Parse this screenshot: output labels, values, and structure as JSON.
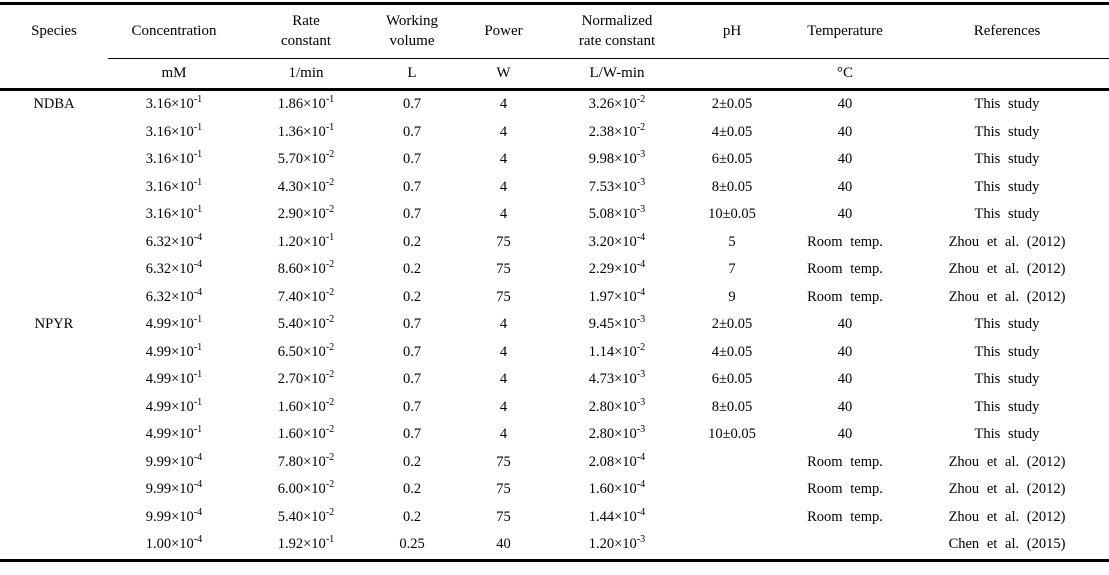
{
  "colors": {
    "background": "#ffffff",
    "text": "#000000",
    "rule": "#000000"
  },
  "table": {
    "columns": [
      {
        "key": "species",
        "label": "Species",
        "unit": ""
      },
      {
        "key": "concentration",
        "label": "Concentration",
        "unit": "mM"
      },
      {
        "key": "rate_constant",
        "label": "Rate\nconstant",
        "unit": "1/min"
      },
      {
        "key": "working_volume",
        "label": "Working\nvolume",
        "unit": "L"
      },
      {
        "key": "power",
        "label": "Power",
        "unit": "W"
      },
      {
        "key": "normalized_rate_constant",
        "label": "Normalized\nrate constant",
        "unit": "L/W-min"
      },
      {
        "key": "ph",
        "label": "pH",
        "unit": ""
      },
      {
        "key": "temperature",
        "label": "Temperature",
        "unit": "°C"
      },
      {
        "key": "references",
        "label": "References",
        "unit": ""
      }
    ],
    "rows": [
      [
        "NDBA",
        "3.16×10^-1",
        "1.86×10^-1",
        "0.7",
        "4",
        "3.26×10^-2",
        "2±0.05",
        "40",
        "This study"
      ],
      [
        "",
        "3.16×10^-1",
        "1.36×10^-1",
        "0.7",
        "4",
        "2.38×10^-2",
        "4±0.05",
        "40",
        "This study"
      ],
      [
        "",
        "3.16×10^-1",
        "5.70×10^-2",
        "0.7",
        "4",
        "9.98×10^-3",
        "6±0.05",
        "40",
        "This study"
      ],
      [
        "",
        "3.16×10^-1",
        "4.30×10^-2",
        "0.7",
        "4",
        "7.53×10^-3",
        "8±0.05",
        "40",
        "This study"
      ],
      [
        "",
        "3.16×10^-1",
        "2.90×10^-2",
        "0.7",
        "4",
        "5.08×10^-3",
        "10±0.05",
        "40",
        "This study"
      ],
      [
        "",
        "6.32×10^-4",
        "1.20×10^-1",
        "0.2",
        "75",
        "3.20×10^-4",
        "5",
        "Room temp.",
        "Zhou et al. (2012)"
      ],
      [
        "",
        "6.32×10^-4",
        "8.60×10^-2",
        "0.2",
        "75",
        "2.29×10^-4",
        "7",
        "Room temp.",
        "Zhou et al. (2012)"
      ],
      [
        "",
        "6.32×10^-4",
        "7.40×10^-2",
        "0.2",
        "75",
        "1.97×10^-4",
        "9",
        "Room temp.",
        "Zhou et al. (2012)"
      ],
      [
        "NPYR",
        "4.99×10^-1",
        "5.40×10^-2",
        "0.7",
        "4",
        "9.45×10^-3",
        "2±0.05",
        "40",
        "This study"
      ],
      [
        "",
        "4.99×10^-1",
        "6.50×10^-2",
        "0.7",
        "4",
        "1.14×10^-2",
        "4±0.05",
        "40",
        "This study"
      ],
      [
        "",
        "4.99×10^-1",
        "2.70×10^-2",
        "0.7",
        "4",
        "4.73×10^-3",
        "6±0.05",
        "40",
        "This study"
      ],
      [
        "",
        "4.99×10^-1",
        "1.60×10^-2",
        "0.7",
        "4",
        "2.80×10^-3",
        "8±0.05",
        "40",
        "This study"
      ],
      [
        "",
        "4.99×10^-1",
        "1.60×10^-2",
        "0.7",
        "4",
        "2.80×10^-3",
        "10±0.05",
        "40",
        "This study"
      ],
      [
        "",
        "9.99×10^-4",
        "7.80×10^-2",
        "0.2",
        "75",
        "2.08×10^-4",
        "",
        "Room temp.",
        "Zhou et al. (2012)"
      ],
      [
        "",
        "9.99×10^-4",
        "6.00×10^-2",
        "0.2",
        "75",
        "1.60×10^-4",
        "",
        "Room temp.",
        "Zhou et al. (2012)"
      ],
      [
        "",
        "9.99×10^-4",
        "5.40×10^-2",
        "0.2",
        "75",
        "1.44×10^-4",
        "",
        "Room temp.",
        "Zhou et al. (2012)"
      ],
      [
        "",
        "1.00×10^-4",
        "1.92×10^-1",
        "0.25",
        "40",
        "1.20×10^-3",
        "",
        "",
        "Chen et al. (2015)"
      ]
    ]
  }
}
